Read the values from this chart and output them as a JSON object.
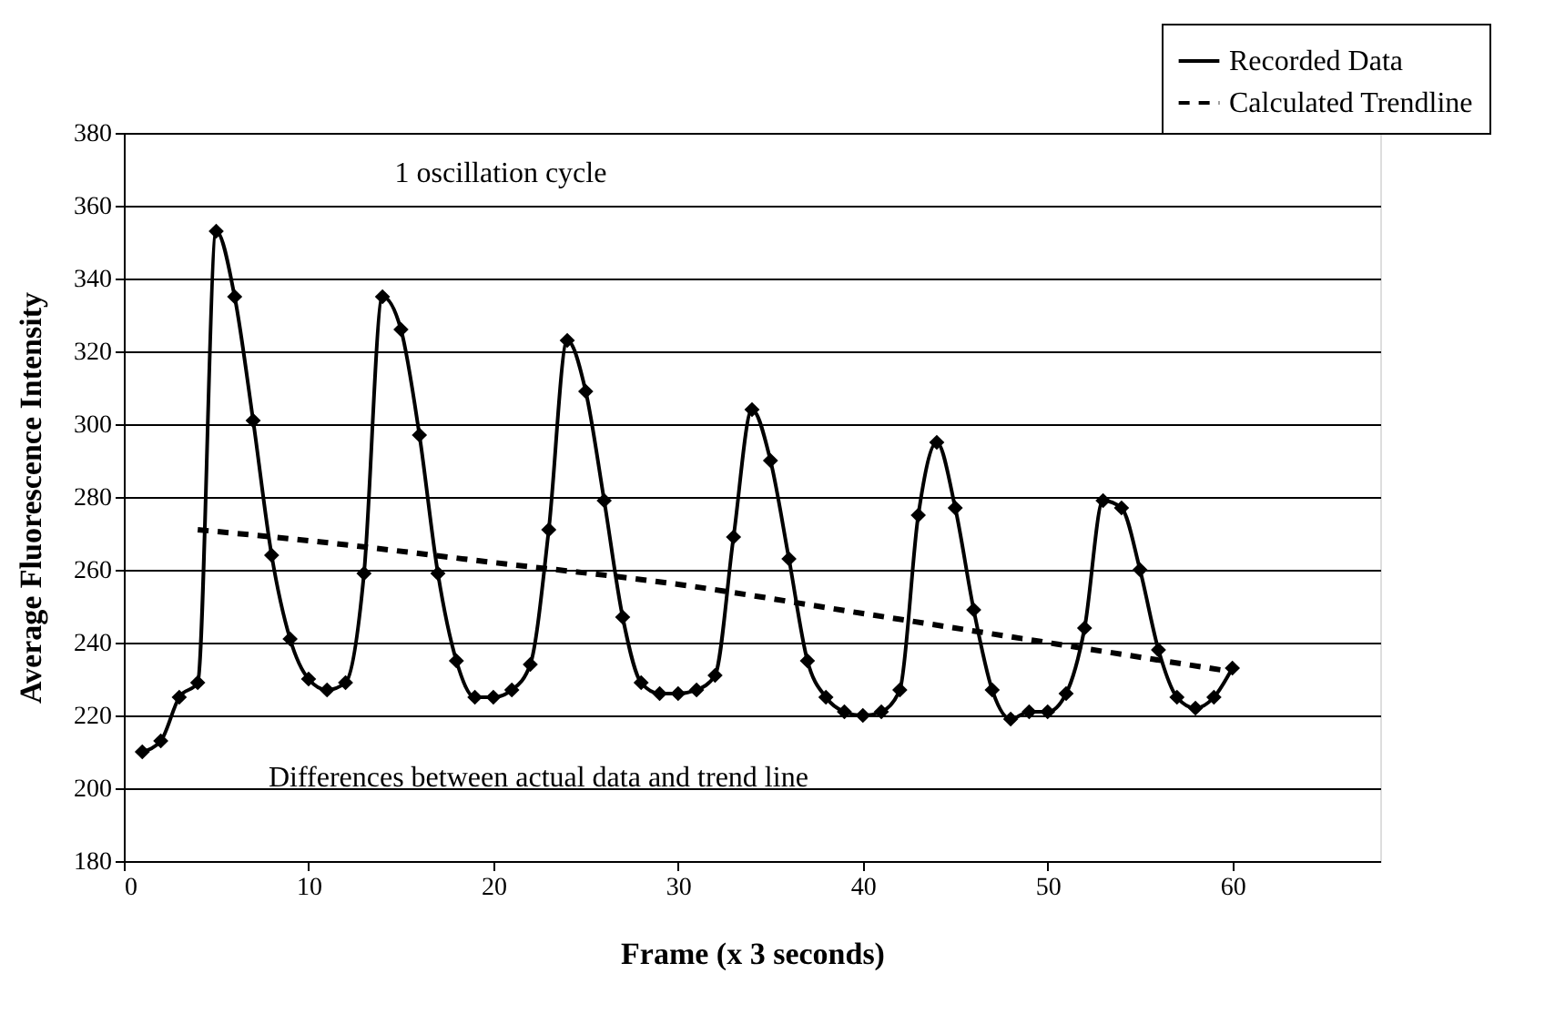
{
  "chart_data": {
    "type": "line",
    "xlabel": "Frame (x 3 seconds)",
    "ylabel": "Average Fluorescence Intensity",
    "xlim": [
      0,
      68
    ],
    "xticks": [
      0,
      10,
      20,
      30,
      40,
      50,
      60
    ],
    "ylim": [
      180,
      380
    ],
    "yticks": [
      180,
      200,
      220,
      240,
      260,
      280,
      300,
      320,
      340,
      360,
      380
    ],
    "grid": "y",
    "legend": "top right",
    "series": [
      {
        "name": "Recorded Data",
        "color": "#000000",
        "marker": "diamond",
        "line_style": "solid",
        "x": [
          1,
          2,
          3,
          4,
          5,
          6,
          7,
          8,
          9,
          10,
          11,
          12,
          13,
          14,
          15,
          16,
          17,
          18,
          19,
          20,
          21,
          22,
          23,
          24,
          25,
          26,
          27,
          28,
          29,
          30,
          31,
          32,
          33,
          34,
          35,
          36,
          37,
          38,
          39,
          40,
          41,
          42,
          43,
          44,
          45,
          46,
          47,
          48,
          49,
          50,
          51,
          52,
          53,
          54,
          55,
          56,
          57,
          58,
          59,
          60
        ],
        "values": [
          210,
          213,
          225,
          229,
          353,
          335,
          301,
          264,
          241,
          230,
          227,
          229,
          259,
          335,
          326,
          297,
          259,
          235,
          225,
          225,
          227,
          234,
          271,
          323,
          309,
          279,
          247,
          229,
          226,
          226,
          227,
          231,
          269,
          304,
          290,
          263,
          235,
          225,
          221,
          220,
          221,
          227,
          275,
          295,
          277,
          249,
          227,
          219,
          221,
          221,
          226,
          244,
          279,
          277,
          260,
          238,
          225,
          222,
          225,
          233
        ]
      },
      {
        "name": "Calculated Trendline",
        "color": "#000000",
        "marker": "none",
        "line_style": "dashed",
        "x": [
          4,
          10,
          20,
          30,
          40,
          50,
          60
        ],
        "values": [
          271,
          268,
          262,
          256,
          248,
          240,
          232
        ]
      }
    ],
    "annotations": [
      "1 oscillation cycle",
      "Differences between actual data and trend line"
    ]
  }
}
